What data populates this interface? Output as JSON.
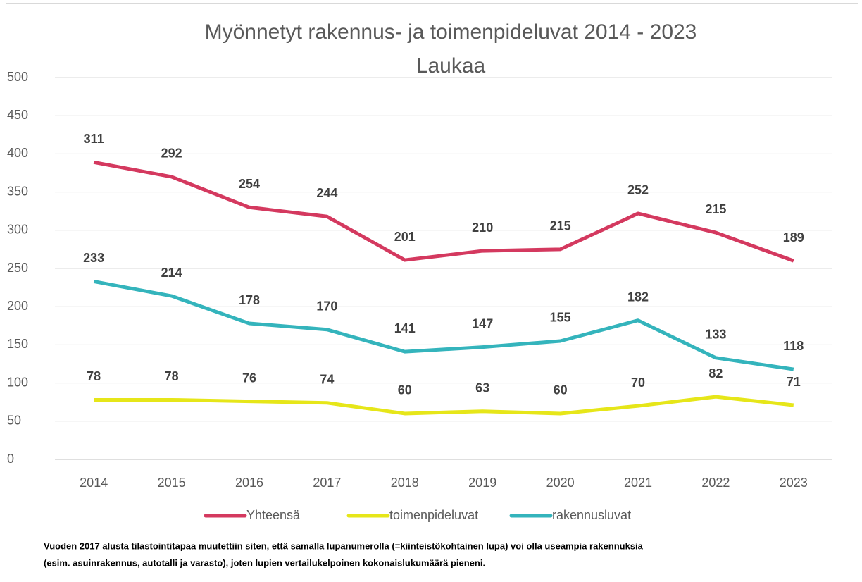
{
  "chart_data": {
    "type": "line",
    "title": "Myönnetyt rakennus- ja toimenpideluvat 2014 - 2023",
    "subtitle": "Laukaa",
    "categories": [
      "2014",
      "2015",
      "2016",
      "2017",
      "2018",
      "2019",
      "2020",
      "2021",
      "2022",
      "2023"
    ],
    "series": [
      {
        "name": "Yhteensä",
        "color": "#d4395f",
        "values": [
          311,
          292,
          254,
          244,
          201,
          210,
          215,
          252,
          215,
          189
        ],
        "stack": "toimenpideluvat"
      },
      {
        "name": "toimenpideluvat",
        "color": "#e6e619",
        "values": [
          78,
          78,
          76,
          74,
          60,
          63,
          60,
          70,
          82,
          71
        ]
      },
      {
        "name": "rakennusluvat",
        "color": "#34b4bc",
        "values": [
          233,
          214,
          178,
          170,
          141,
          147,
          155,
          182,
          133,
          118
        ]
      }
    ],
    "ylim": [
      0,
      500
    ],
    "yticks": [
      0,
      50,
      100,
      150,
      200,
      250,
      300,
      350,
      400,
      450,
      500
    ],
    "grid": true,
    "legend": "bottom",
    "note": [
      "Vuoden 2017 alusta tilastointitapaa muutettiin siten, että samalla lupanumerolla (=kiinteistökohtainen lupa) voi olla useampia rakennuksia",
      "(esim. asuinrakennus, autotalli ja varasto), joten lupien vertailukelpoinen kokonaislukumäärä pieneni."
    ]
  }
}
